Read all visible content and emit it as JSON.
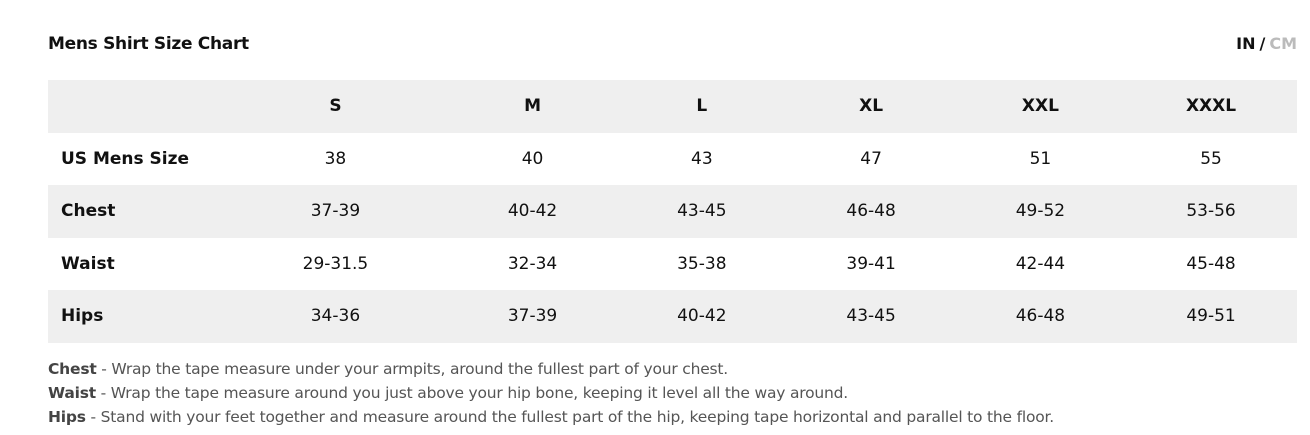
{
  "title": "Mens Shirt Size Chart",
  "units": {
    "in": "IN",
    "sep": "/",
    "cm": "CM",
    "active": "IN"
  },
  "table": {
    "headers": [
      "",
      "S",
      "M",
      "L",
      "XL",
      "XXL",
      "XXXL"
    ],
    "rows": [
      {
        "label": "US Mens Size",
        "values": [
          "38",
          "40",
          "43",
          "47",
          "51",
          "55"
        ]
      },
      {
        "label": "Chest",
        "values": [
          "37-39",
          "40-42",
          "43-45",
          "46-48",
          "49-52",
          "53-56"
        ]
      },
      {
        "label": "Waist",
        "values": [
          "29-31.5",
          "32-34",
          "35-38",
          "39-41",
          "42-44",
          "45-48"
        ]
      },
      {
        "label": "Hips",
        "values": [
          "34-36",
          "37-39",
          "40-42",
          "43-45",
          "46-48",
          "49-51"
        ]
      }
    ]
  },
  "notes": [
    {
      "term": "Chest",
      "text": " - Wrap the tape measure under your armpits, around the fullest part of your chest."
    },
    {
      "term": "Waist",
      "text": " - Wrap the tape measure around you just above your hip bone, keeping it level all the way around."
    },
    {
      "term": "Hips",
      "text": " - Stand with your feet together and measure around the fullest part of the hip, keeping tape horizontal and parallel to the floor."
    }
  ]
}
